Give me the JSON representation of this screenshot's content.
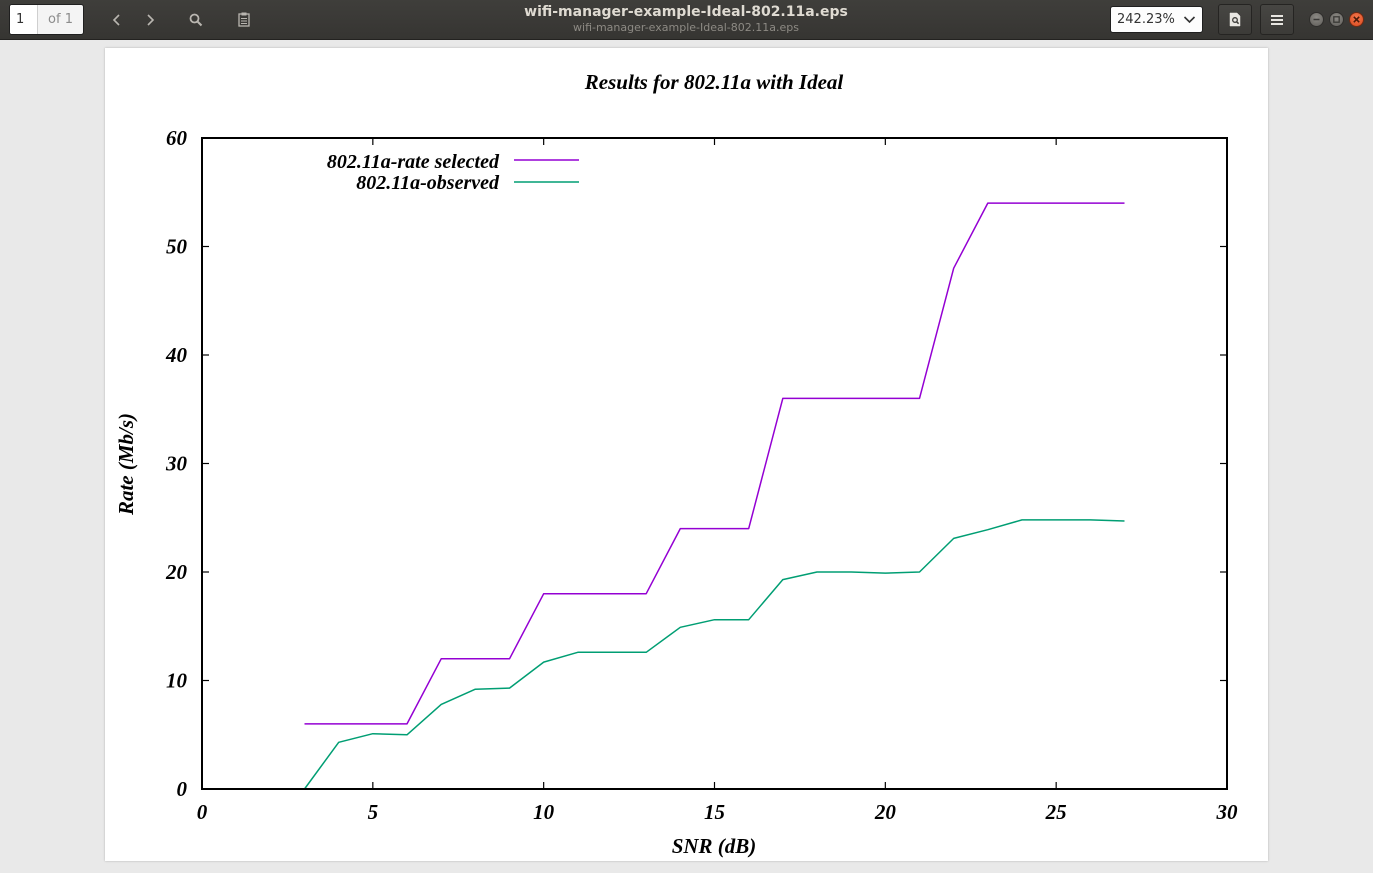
{
  "toolbar": {
    "page_current": "1",
    "page_total": "of 1",
    "zoom": "242.23%"
  },
  "window": {
    "title": "wifi-manager-example-Ideal-802.11a.eps",
    "subtitle": "wifi-manager-example-Ideal-802.11a.eps"
  },
  "colors": {
    "rate_selected": "#9400d3",
    "observed": "#009e73"
  },
  "chart_data": {
    "type": "line",
    "title": "Results for 802.11a with Ideal",
    "xlabel": "SNR (dB)",
    "ylabel": "Rate (Mb/s)",
    "xlim": [
      0,
      30
    ],
    "ylim": [
      0,
      60
    ],
    "xticks": [
      "0",
      "5",
      "10",
      "15",
      "20",
      "25",
      "30"
    ],
    "yticks": [
      "0",
      "10",
      "20",
      "30",
      "40",
      "50",
      "60"
    ],
    "grid": false,
    "legend_position": "top-left",
    "series": [
      {
        "name": "802.11a-rate selected",
        "color": "#9400d3",
        "x": [
          3,
          4,
          5,
          6,
          7,
          8,
          9,
          10,
          11,
          12,
          13,
          14,
          15,
          16,
          17,
          18,
          19,
          20,
          21,
          22,
          23,
          24,
          25,
          26,
          27
        ],
        "y": [
          6,
          6,
          6,
          6,
          12,
          12,
          12,
          18,
          18,
          18,
          18,
          24,
          24,
          24,
          36,
          36,
          36,
          36,
          36,
          48,
          54,
          54,
          54,
          54,
          54
        ]
      },
      {
        "name": "802.11a-observed",
        "color": "#009e73",
        "x": [
          3,
          4,
          5,
          6,
          7,
          8,
          9,
          10,
          11,
          12,
          13,
          14,
          15,
          16,
          17,
          18,
          19,
          20,
          21,
          22,
          23,
          24,
          25,
          26,
          27
        ],
        "y": [
          0,
          4.3,
          5.1,
          5.0,
          7.8,
          9.2,
          9.3,
          11.7,
          12.6,
          12.6,
          12.6,
          14.9,
          15.6,
          15.6,
          19.3,
          20.0,
          20.0,
          19.9,
          20.0,
          23.1,
          23.9,
          24.8,
          24.8,
          24.8,
          24.7
        ]
      }
    ]
  }
}
